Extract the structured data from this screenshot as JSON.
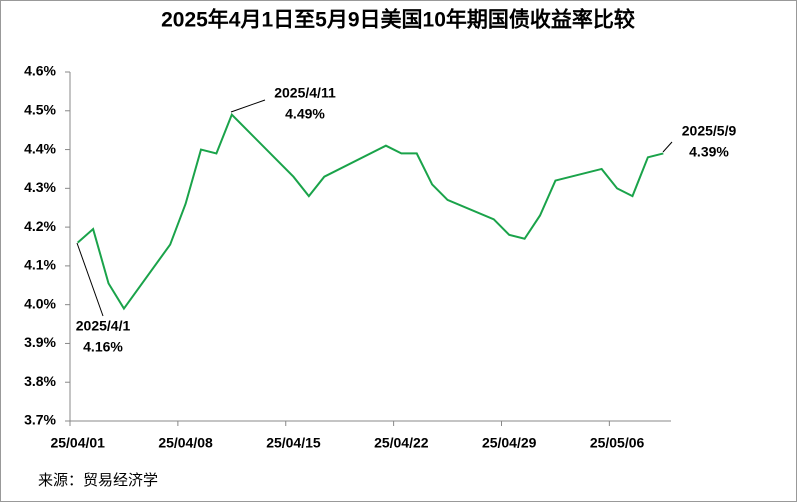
{
  "chart_data": {
    "type": "line",
    "title": "2025年4月1日至5月9日美国10年期国债收益率比较",
    "source": "来源：贸易经济学",
    "x": [
      0,
      1,
      2,
      3,
      6,
      7,
      8,
      9,
      10,
      13,
      14,
      15,
      16,
      20,
      21,
      22,
      23,
      24,
      27,
      28,
      29,
      30,
      31,
      34,
      35,
      36,
      37,
      38
    ],
    "series": [
      {
        "color": "#1aa34a",
        "values": [
          4.16,
          4.195,
          4.055,
          3.99,
          4.155,
          4.26,
          4.4,
          4.39,
          4.49,
          4.37,
          4.33,
          4.28,
          4.33,
          4.41,
          4.39,
          4.39,
          4.31,
          4.27,
          4.22,
          4.18,
          4.17,
          4.23,
          4.32,
          4.35,
          4.3,
          4.28,
          4.38,
          4.39
        ]
      }
    ],
    "xlim": [
      -0.5,
      38.5
    ],
    "xticks": [
      {
        "value": 0,
        "label": "25/04/01"
      },
      {
        "value": 7,
        "label": "25/04/08"
      },
      {
        "value": 14,
        "label": "25/04/15"
      },
      {
        "value": 21,
        "label": "25/04/22"
      },
      {
        "value": 28,
        "label": "25/04/29"
      },
      {
        "value": 35,
        "label": "25/05/06"
      }
    ],
    "ylim": [
      3.7,
      4.6
    ],
    "yticks": [
      {
        "value": 3.7,
        "label": "3.7%"
      },
      {
        "value": 3.8,
        "label": "3.8%"
      },
      {
        "value": 3.9,
        "label": "3.9%"
      },
      {
        "value": 4.0,
        "label": "4.0%"
      },
      {
        "value": 4.1,
        "label": "4.1%"
      },
      {
        "value": 4.2,
        "label": "4.2%"
      },
      {
        "value": 4.3,
        "label": "4.3%"
      },
      {
        "value": 4.4,
        "label": "4.4%"
      },
      {
        "value": 4.5,
        "label": "4.5%"
      },
      {
        "value": 4.6,
        "label": "4.6%"
      }
    ],
    "annotations": [
      {
        "date": "2025/4/1",
        "label": "4.16%"
      },
      {
        "date": "2025/4/11",
        "label": "4.49%"
      },
      {
        "date": "2025/5/9",
        "label": "4.39%"
      }
    ]
  }
}
